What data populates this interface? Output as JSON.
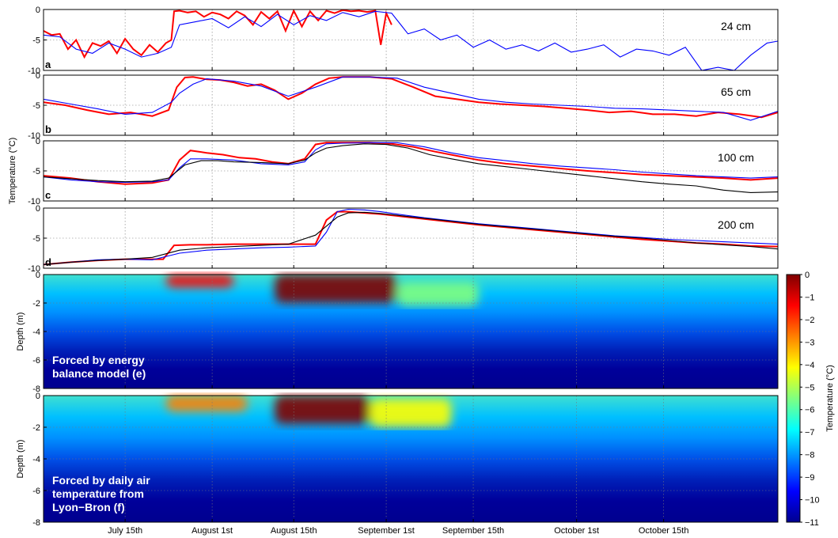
{
  "chart_data": [
    {
      "type": "line",
      "panel_label": "a",
      "depth_label": "24 cm",
      "ylim": [
        -10,
        0
      ],
      "yticks": [
        "0",
        "-5",
        "-10"
      ],
      "grid": true,
      "series": [
        {
          "color": "#ff0000",
          "x": [
            0,
            3,
            6,
            9,
            12,
            15,
            18,
            21,
            24,
            27,
            30,
            33,
            36,
            39,
            42,
            45,
            47,
            48,
            50,
            53,
            56,
            59,
            62,
            65,
            68,
            71,
            74,
            77,
            80,
            83,
            86,
            89,
            92,
            95,
            98,
            101,
            104,
            107,
            110,
            113,
            116,
            119,
            122,
            124,
            126,
            128
          ],
          "y": [
            -3.5,
            -4.2,
            -4.0,
            -6.5,
            -5.0,
            -7.8,
            -5.5,
            -6.0,
            -5.2,
            -7.2,
            -4.8,
            -6.5,
            -7.5,
            -5.8,
            -7.0,
            -5.5,
            -5.0,
            -0.3,
            -0.2,
            -0.5,
            -0.3,
            -1.2,
            -0.5,
            -0.8,
            -1.5,
            -0.3,
            -1.0,
            -2.5,
            -0.4,
            -1.5,
            -0.3,
            -3.5,
            -0.2,
            -2.8,
            -0.3,
            -1.8,
            -0.2,
            -0.6,
            -0.1,
            -0.3,
            -0.2,
            -0.4,
            -0.2,
            -5.8,
            -0.6,
            -2.5
          ]
        },
        {
          "color": "#0000ff",
          "x": [
            0,
            6,
            12,
            18,
            24,
            30,
            36,
            42,
            47,
            50,
            56,
            62,
            68,
            74,
            80,
            86,
            92,
            98,
            104,
            110,
            116,
            122,
            128,
            134,
            140,
            146,
            152,
            158,
            164,
            170,
            176,
            182,
            188,
            194,
            200,
            206,
            212,
            218,
            224,
            230,
            236,
            242,
            248,
            254,
            260,
            266,
            270
          ],
          "y": [
            -4.2,
            -4.5,
            -6.5,
            -7.2,
            -5.5,
            -6.5,
            -7.8,
            -7.2,
            -6.2,
            -2.5,
            -2.0,
            -1.5,
            -3.0,
            -1.2,
            -2.8,
            -0.8,
            -2.5,
            -1.0,
            -1.8,
            -0.5,
            -1.2,
            -0.3,
            -0.6,
            -4.0,
            -3.2,
            -5.0,
            -4.2,
            -6.2,
            -5.0,
            -6.5,
            -5.8,
            -6.8,
            -5.5,
            -7.0,
            -6.5,
            -5.8,
            -7.8,
            -6.5,
            -6.8,
            -7.5,
            -6.2,
            -10.0,
            -9.5,
            -10.0,
            -7.5,
            -5.5,
            -5.2
          ]
        }
      ]
    },
    {
      "type": "line",
      "panel_label": "b",
      "depth_label": "65 cm",
      "ylim": [
        -10,
        0
      ],
      "yticks": [
        "0",
        "-5",
        "-10"
      ],
      "grid": true,
      "series": [
        {
          "color": "#ff0000",
          "x": [
            0,
            8,
            16,
            24,
            32,
            40,
            46,
            49,
            52,
            55,
            60,
            65,
            70,
            75,
            80,
            85,
            90,
            95,
            100,
            105,
            110,
            115,
            120,
            128,
            136,
            144,
            152,
            160,
            168,
            176,
            184,
            192,
            200,
            208,
            216,
            224,
            232,
            240,
            248,
            256,
            264,
            270
          ],
          "y": [
            -4.5,
            -5.0,
            -5.8,
            -6.5,
            -6.2,
            -6.8,
            -5.8,
            -2.0,
            -0.4,
            -0.3,
            -0.7,
            -0.8,
            -1.2,
            -1.8,
            -1.5,
            -2.5,
            -4.0,
            -3.0,
            -1.5,
            -0.5,
            -0.3,
            -0.3,
            -0.3,
            -0.6,
            -2.0,
            -3.5,
            -4.0,
            -4.5,
            -4.8,
            -5.0,
            -5.2,
            -5.5,
            -5.8,
            -6.2,
            -6.0,
            -6.5,
            -6.5,
            -6.8,
            -6.2,
            -6.5,
            -7.0,
            -6.2
          ]
        },
        {
          "color": "#0000ff",
          "x": [
            0,
            10,
            20,
            30,
            40,
            47,
            50,
            55,
            60,
            70,
            80,
            90,
            100,
            110,
            120,
            130,
            140,
            150,
            160,
            170,
            180,
            190,
            200,
            210,
            220,
            230,
            240,
            250,
            260,
            270
          ],
          "y": [
            -4.0,
            -4.8,
            -5.6,
            -6.5,
            -6.2,
            -4.5,
            -3.0,
            -1.5,
            -0.6,
            -1.0,
            -1.8,
            -3.5,
            -2.0,
            -0.3,
            -0.3,
            -0.5,
            -2.0,
            -3.0,
            -4.0,
            -4.5,
            -4.8,
            -5.0,
            -5.2,
            -5.5,
            -5.6,
            -5.8,
            -6.0,
            -6.2,
            -7.5,
            -6.0
          ]
        }
      ]
    },
    {
      "type": "line",
      "panel_label": "c",
      "depth_label": "100 cm",
      "ylim": [
        -10,
        0
      ],
      "yticks": [
        "0",
        "-5",
        "-10"
      ],
      "grid": true,
      "series": [
        {
          "color": "#ff0000",
          "x": [
            0,
            10,
            20,
            30,
            40,
            46,
            50,
            54,
            60,
            66,
            72,
            78,
            84,
            90,
            96,
            100,
            104,
            110,
            120,
            128,
            136,
            144,
            152,
            160,
            170,
            180,
            190,
            200,
            210,
            220,
            230,
            240,
            250,
            260,
            270
          ],
          "y": [
            -5.8,
            -6.2,
            -6.8,
            -7.2,
            -7.0,
            -6.5,
            -3.2,
            -1.6,
            -2.0,
            -2.3,
            -2.8,
            -3.0,
            -3.5,
            -3.8,
            -3.0,
            -0.6,
            -0.3,
            -0.3,
            -0.3,
            -0.5,
            -1.0,
            -1.8,
            -2.5,
            -3.2,
            -3.8,
            -4.2,
            -4.6,
            -5.0,
            -5.3,
            -5.6,
            -5.8,
            -6.0,
            -6.2,
            -6.5,
            -6.2
          ]
        },
        {
          "color": "#0000ff",
          "x": [
            0,
            10,
            20,
            30,
            40,
            46,
            50,
            54,
            60,
            70,
            80,
            90,
            96,
            100,
            104,
            110,
            120,
            130,
            140,
            150,
            160,
            170,
            180,
            190,
            200,
            210,
            220,
            230,
            240,
            250,
            260,
            270
          ],
          "y": [
            -6.0,
            -6.5,
            -6.8,
            -6.9,
            -6.8,
            -6.5,
            -4.5,
            -3.0,
            -3.0,
            -3.2,
            -3.8,
            -4.0,
            -3.5,
            -1.5,
            -0.5,
            -0.4,
            -0.3,
            -0.3,
            -1.0,
            -2.0,
            -2.8,
            -3.3,
            -3.8,
            -4.2,
            -4.5,
            -4.8,
            -5.2,
            -5.5,
            -5.8,
            -6.0,
            -6.2,
            -6.0
          ]
        },
        {
          "color": "#000000",
          "x": [
            0,
            10,
            20,
            30,
            40,
            46,
            52,
            58,
            64,
            70,
            80,
            90,
            96,
            100,
            104,
            110,
            118,
            126,
            134,
            142,
            150,
            160,
            170,
            180,
            190,
            200,
            210,
            220,
            230,
            240,
            250,
            260,
            270
          ],
          "y": [
            -6.0,
            -6.3,
            -6.6,
            -6.8,
            -6.7,
            -6.2,
            -4.0,
            -3.3,
            -3.3,
            -3.5,
            -3.6,
            -3.8,
            -3.2,
            -2.0,
            -1.2,
            -0.8,
            -0.5,
            -0.6,
            -1.2,
            -2.3,
            -3.0,
            -3.8,
            -4.3,
            -4.8,
            -5.3,
            -5.8,
            -6.3,
            -6.8,
            -7.2,
            -7.5,
            -8.2,
            -8.6,
            -8.5
          ]
        }
      ]
    },
    {
      "type": "line",
      "panel_label": "d",
      "depth_label": "200 cm",
      "ylim": [
        -10,
        0
      ],
      "yticks": [
        "0",
        "-5",
        "-10"
      ],
      "grid": true,
      "series": [
        {
          "color": "#ff0000",
          "x": [
            0,
            10,
            20,
            30,
            40,
            44,
            48,
            54,
            60,
            70,
            80,
            90,
            100,
            104,
            108,
            112,
            118,
            124,
            130,
            140,
            150,
            160,
            170,
            180,
            190,
            200,
            210,
            220,
            230,
            240,
            250,
            260,
            270
          ],
          "y": [
            -9.4,
            -9.0,
            -8.7,
            -8.5,
            -8.5,
            -8.5,
            -6.2,
            -6.1,
            -6.1,
            -6.0,
            -6.0,
            -6.0,
            -6.0,
            -2.0,
            -0.6,
            -0.6,
            -0.8,
            -1.0,
            -1.3,
            -1.8,
            -2.3,
            -2.8,
            -3.2,
            -3.6,
            -4.0,
            -4.4,
            -4.8,
            -5.2,
            -5.5,
            -5.8,
            -6.0,
            -6.3,
            -6.4
          ]
        },
        {
          "color": "#0000ff",
          "x": [
            0,
            10,
            20,
            30,
            40,
            50,
            60,
            70,
            80,
            90,
            100,
            104,
            108,
            112,
            118,
            124,
            130,
            140,
            150,
            160,
            170,
            180,
            190,
            200,
            210,
            220,
            230,
            240,
            250,
            260,
            270
          ],
          "y": [
            -9.4,
            -9.0,
            -8.6,
            -8.5,
            -8.6,
            -7.5,
            -7.0,
            -6.8,
            -6.6,
            -6.5,
            -6.3,
            -4.0,
            -0.6,
            -0.2,
            -0.3,
            -0.6,
            -1.0,
            -1.6,
            -2.1,
            -2.6,
            -3.0,
            -3.4,
            -3.8,
            -4.2,
            -4.6,
            -4.9,
            -5.2,
            -5.4,
            -5.6,
            -5.8,
            -6.0
          ]
        },
        {
          "color": "#000000",
          "x": [
            0,
            10,
            20,
            30,
            40,
            50,
            60,
            70,
            80,
            90,
            100,
            104,
            108,
            112,
            118,
            124,
            130,
            140,
            150,
            160,
            170,
            180,
            190,
            200,
            210,
            220,
            230,
            240,
            250,
            260,
            270
          ],
          "y": [
            -9.4,
            -9.0,
            -8.7,
            -8.5,
            -8.2,
            -7.0,
            -6.6,
            -6.4,
            -6.2,
            -6.0,
            -4.5,
            -3.0,
            -1.5,
            -0.8,
            -0.7,
            -0.9,
            -1.2,
            -1.7,
            -2.2,
            -2.7,
            -3.1,
            -3.5,
            -3.9,
            -4.3,
            -4.7,
            -5.0,
            -5.4,
            -5.8,
            -6.1,
            -6.4,
            -6.8
          ]
        }
      ]
    },
    {
      "type": "heatmap",
      "panel_label": "e",
      "annotation": [
        "Forced by energy",
        "balance model (e)"
      ],
      "ylabel": "Depth (m)",
      "ylim": [
        -8,
        0
      ],
      "yticks": [
        "0",
        "-2",
        "-4",
        "-6",
        "-8"
      ],
      "grid": true,
      "warm_zones": [
        {
          "x": [
            45,
            70
          ],
          "depth": [
            0,
            -0.9
          ],
          "level": 0.9
        },
        {
          "x": [
            85,
            130
          ],
          "depth": [
            0,
            -2.0
          ],
          "level": 0.95
        },
        {
          "x": [
            130,
            160
          ],
          "depth": [
            -0.5,
            -2.2
          ],
          "level": 0.55
        }
      ]
    },
    {
      "type": "heatmap",
      "panel_label": "f",
      "annotation": [
        "Forced by daily air",
        "temperature from",
        "Lyon−Bron (f)"
      ],
      "ylabel": "Depth (m)",
      "ylim": [
        -8,
        0
      ],
      "yticks": [
        "0",
        "-2",
        "-4",
        "-6",
        "-8"
      ],
      "grid": true,
      "warm_zones": [
        {
          "x": [
            45,
            75
          ],
          "depth": [
            0,
            -1.0
          ],
          "level": 0.7
        },
        {
          "x": [
            85,
            120
          ],
          "depth": [
            0,
            -1.8
          ],
          "level": 0.95
        },
        {
          "x": [
            120,
            150
          ],
          "depth": [
            -0.2,
            -2.0
          ],
          "level": 0.6
        }
      ]
    }
  ],
  "shared_x": {
    "xlim": [
      0,
      270
    ],
    "tick_positions": [
      30,
      62,
      92,
      126,
      158,
      196,
      228
    ],
    "tick_labels": [
      "July 15th",
      "August 1st",
      "August 15th",
      "September 1st",
      "September 15th",
      "October 1st",
      "October 15th"
    ]
  },
  "y_axis_label": "Temperature (°C)",
  "colorbar": {
    "label": "Temperature (°C)",
    "min": -11,
    "max": 0,
    "ticks": [
      "0",
      "−1",
      "−2",
      "−3",
      "−4",
      "−5",
      "−6",
      "−7",
      "−8",
      "−9",
      "−10",
      "−11"
    ],
    "colors": [
      "#00008f",
      "#0000ff",
      "#0080ff",
      "#00ffff",
      "#80ff80",
      "#ffff00",
      "#ff8000",
      "#ff0000",
      "#800000"
    ]
  }
}
